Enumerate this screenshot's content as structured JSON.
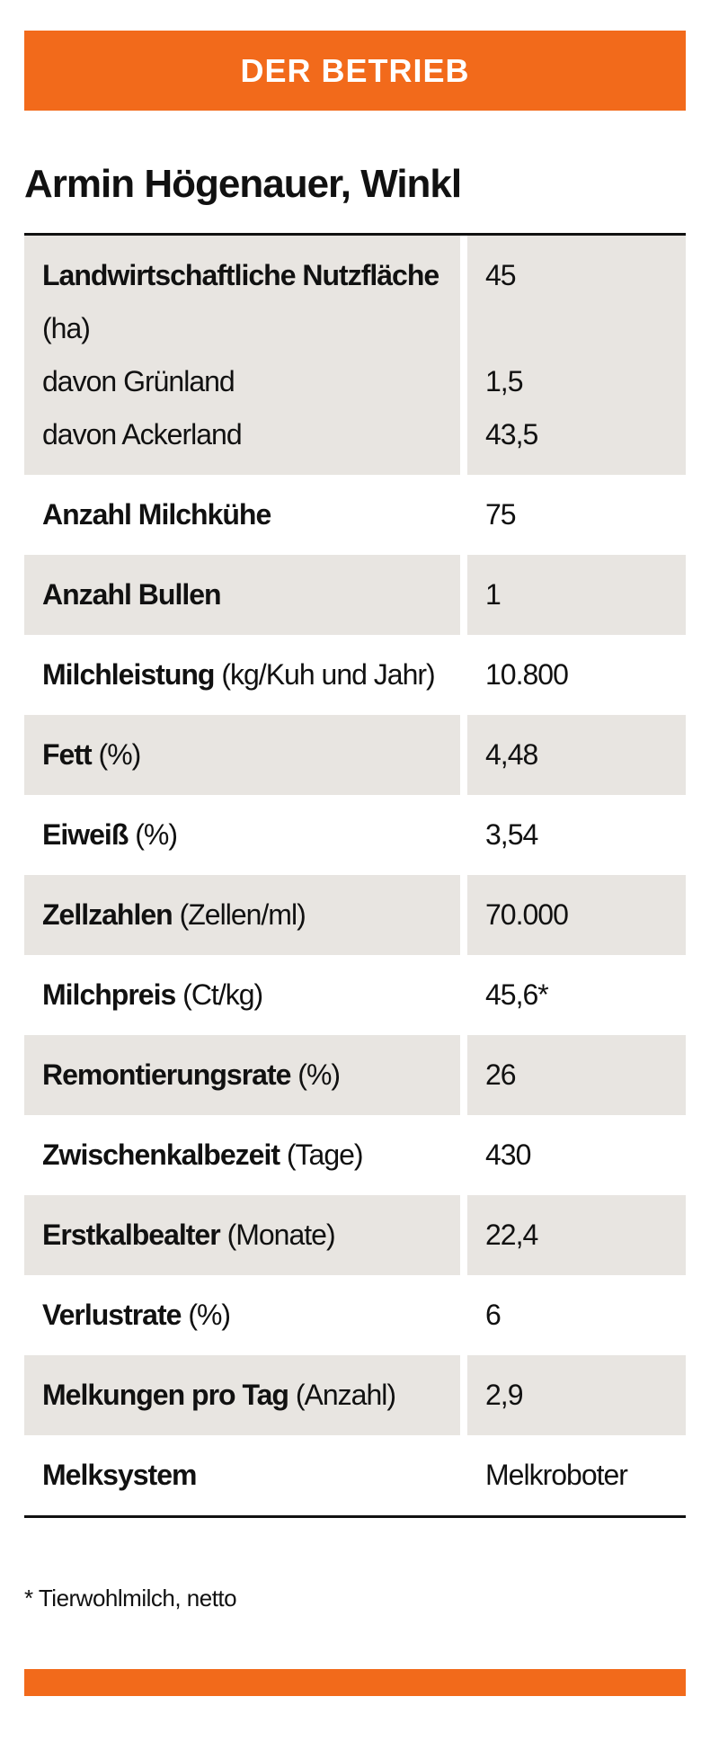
{
  "header": {
    "title": "DER BETRIEB"
  },
  "title": "Armin Högenauer, Winkl",
  "table": {
    "rows": [
      {
        "label": "Landwirtschaftliche Nutzfläche",
        "unit": "(ha)",
        "value": "45",
        "sub": [
          {
            "label": "davon Grünland",
            "value": "1,5"
          },
          {
            "label": "davon Ackerland",
            "value": "43,5"
          }
        ]
      },
      {
        "label": "Anzahl Milchkühe",
        "value": "75"
      },
      {
        "label": "Anzahl Bullen",
        "value": "1"
      },
      {
        "label": "Milchleistung",
        "unit": "(kg/Kuh und Jahr)",
        "value": "10.800"
      },
      {
        "label": "Fett",
        "unit": "(%)",
        "value": "4,48"
      },
      {
        "label": "Eiweiß",
        "unit": "(%)",
        "value": "3,54"
      },
      {
        "label": "Zellzahlen",
        "unit": "(Zellen/ml)",
        "value": "70.000"
      },
      {
        "label": "Milchpreis",
        "unit": "(Ct/kg)",
        "value": "45,6*"
      },
      {
        "label": "Remontierungsrate",
        "unit": "(%)",
        "value": "26"
      },
      {
        "label": "Zwischenkalbezeit",
        "unit": "(Tage)",
        "value": "430"
      },
      {
        "label": "Erstkalbealter",
        "unit": "(Monate)",
        "value": "22,4"
      },
      {
        "label": "Verlustrate",
        "unit": "(%)",
        "value": "6"
      },
      {
        "label": "Melkungen pro Tag",
        "unit": "(Anzahl)",
        "value": "2,9"
      },
      {
        "label": "Melksystem",
        "value": "Melkroboter"
      }
    ]
  },
  "footnote": "* Tierwohlmilch, netto"
}
